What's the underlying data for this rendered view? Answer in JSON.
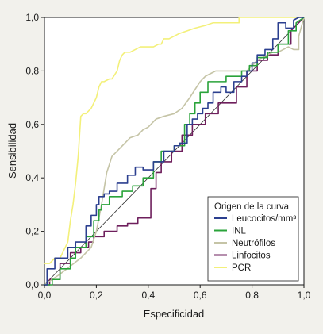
{
  "chart_data": {
    "type": "line",
    "title": "",
    "xlabel": "Especificidad",
    "ylabel": "Sensibilidad",
    "xlim": [
      0,
      1
    ],
    "ylim": [
      0,
      1
    ],
    "x_ticks": [
      "0,0",
      "0,2",
      "0,4",
      "0,6",
      "0,8",
      "1,0"
    ],
    "y_ticks": [
      "0,0",
      "0,2",
      "0,4",
      "0,6",
      "0,8",
      "1,0"
    ],
    "grid": false,
    "background_color": "#ffffff",
    "legend": {
      "title": "Origen de la curva",
      "placement": "bottom-right",
      "entries": [
        "Leucocitos/mm³",
        "INL",
        "Neutrófilos",
        "Linfocitos",
        "PCR"
      ]
    },
    "series": [
      {
        "name": "Leucocitos/mm³",
        "color": "#2b3f8f",
        "x": [
          0,
          0.01,
          0.01,
          0.04,
          0.04,
          0.09,
          0.09,
          0.12,
          0.12,
          0.16,
          0.16,
          0.18,
          0.18,
          0.2,
          0.2,
          0.21,
          0.21,
          0.23,
          0.23,
          0.25,
          0.25,
          0.28,
          0.28,
          0.32,
          0.32,
          0.35,
          0.35,
          0.38,
          0.38,
          0.42,
          0.42,
          0.46,
          0.46,
          0.5,
          0.5,
          0.52,
          0.52,
          0.55,
          0.55,
          0.57,
          0.57,
          0.59,
          0.59,
          0.61,
          0.61,
          0.63,
          0.63,
          0.65,
          0.65,
          0.68,
          0.68,
          0.7,
          0.7,
          0.73,
          0.73,
          0.76,
          0.76,
          0.78,
          0.78,
          0.8,
          0.8,
          0.82,
          0.82,
          0.85,
          0.85,
          0.88,
          0.88,
          0.9,
          0.9,
          0.93,
          0.93,
          0.96,
          0.96,
          0.98,
          1.0
        ],
        "y": [
          0,
          0,
          0.06,
          0.06,
          0.1,
          0.1,
          0.14,
          0.14,
          0.16,
          0.16,
          0.22,
          0.22,
          0.26,
          0.26,
          0.3,
          0.3,
          0.33,
          0.33,
          0.34,
          0.34,
          0.35,
          0.35,
          0.38,
          0.38,
          0.41,
          0.41,
          0.44,
          0.44,
          0.43,
          0.43,
          0.46,
          0.46,
          0.5,
          0.5,
          0.52,
          0.52,
          0.53,
          0.53,
          0.6,
          0.6,
          0.62,
          0.62,
          0.64,
          0.64,
          0.66,
          0.66,
          0.68,
          0.68,
          0.72,
          0.72,
          0.74,
          0.74,
          0.72,
          0.72,
          0.76,
          0.76,
          0.78,
          0.78,
          0.8,
          0.8,
          0.83,
          0.83,
          0.86,
          0.86,
          0.88,
          0.88,
          0.92,
          0.92,
          0.98,
          0.98,
          0.96,
          0.96,
          0.99,
          1.0,
          1.0
        ]
      },
      {
        "name": "INL",
        "color": "#2aa33a",
        "x": [
          0,
          0.03,
          0.03,
          0.06,
          0.06,
          0.1,
          0.1,
          0.12,
          0.12,
          0.16,
          0.16,
          0.19,
          0.19,
          0.21,
          0.21,
          0.22,
          0.22,
          0.25,
          0.25,
          0.3,
          0.3,
          0.34,
          0.34,
          0.38,
          0.38,
          0.42,
          0.42,
          0.45,
          0.45,
          0.5,
          0.5,
          0.54,
          0.54,
          0.56,
          0.56,
          0.58,
          0.58,
          0.6,
          0.6,
          0.63,
          0.63,
          0.66,
          0.66,
          0.7,
          0.7,
          0.73,
          0.73,
          0.76,
          0.76,
          0.79,
          0.79,
          0.82,
          0.82,
          0.86,
          0.86,
          0.9,
          0.9,
          0.94,
          0.94,
          0.97,
          0.97,
          1.0
        ],
        "y": [
          0,
          0,
          0.02,
          0.02,
          0.06,
          0.06,
          0.1,
          0.1,
          0.14,
          0.14,
          0.18,
          0.18,
          0.24,
          0.24,
          0.28,
          0.28,
          0.3,
          0.3,
          0.33,
          0.33,
          0.35,
          0.35,
          0.37,
          0.37,
          0.4,
          0.4,
          0.46,
          0.46,
          0.5,
          0.5,
          0.52,
          0.52,
          0.6,
          0.6,
          0.64,
          0.64,
          0.68,
          0.68,
          0.72,
          0.72,
          0.76,
          0.76,
          0.76,
          0.76,
          0.78,
          0.78,
          0.78,
          0.78,
          0.8,
          0.8,
          0.82,
          0.82,
          0.85,
          0.85,
          0.87,
          0.87,
          0.9,
          0.9,
          0.95,
          0.95,
          0.98,
          1.0
        ]
      },
      {
        "name": "Neutrófilos",
        "color": "#c5c4a6",
        "x": [
          0,
          0.03,
          0.06,
          0.1,
          0.14,
          0.18,
          0.2,
          0.22,
          0.24,
          0.26,
          0.28,
          0.3,
          0.33,
          0.36,
          0.38,
          0.4,
          0.43,
          0.46,
          0.5,
          0.53,
          0.56,
          0.58,
          0.6,
          0.62,
          0.64,
          0.66,
          0.7,
          0.74,
          0.78,
          0.8,
          0.82,
          0.86,
          0.88,
          0.9,
          0.92,
          0.94,
          0.96,
          0.98,
          0.98,
          1.0
        ],
        "y": [
          0,
          0.02,
          0.04,
          0.07,
          0.1,
          0.14,
          0.2,
          0.3,
          0.42,
          0.48,
          0.5,
          0.52,
          0.55,
          0.56,
          0.58,
          0.59,
          0.62,
          0.63,
          0.64,
          0.66,
          0.7,
          0.73,
          0.76,
          0.78,
          0.79,
          0.8,
          0.8,
          0.8,
          0.8,
          0.82,
          0.84,
          0.86,
          0.87,
          0.87,
          0.88,
          0.89,
          0.88,
          0.88,
          0.93,
          1.0
        ]
      },
      {
        "name": "Linfocitos",
        "color": "#6e1f5c",
        "x": [
          0,
          0.02,
          0.02,
          0.06,
          0.06,
          0.1,
          0.1,
          0.14,
          0.14,
          0.17,
          0.17,
          0.19,
          0.19,
          0.23,
          0.23,
          0.28,
          0.28,
          0.32,
          0.32,
          0.36,
          0.36,
          0.41,
          0.41,
          0.43,
          0.43,
          0.45,
          0.45,
          0.49,
          0.49,
          0.53,
          0.53,
          0.57,
          0.57,
          0.62,
          0.62,
          0.67,
          0.67,
          0.74,
          0.74,
          0.78,
          0.78,
          0.82,
          0.82,
          0.86,
          0.86,
          0.9,
          0.9,
          0.95,
          0.95,
          1.0
        ],
        "y": [
          0,
          0,
          0.02,
          0.02,
          0.08,
          0.08,
          0.12,
          0.12,
          0.14,
          0.14,
          0.16,
          0.16,
          0.18,
          0.18,
          0.2,
          0.2,
          0.22,
          0.22,
          0.23,
          0.23,
          0.25,
          0.25,
          0.36,
          0.36,
          0.42,
          0.42,
          0.46,
          0.46,
          0.5,
          0.5,
          0.56,
          0.56,
          0.6,
          0.6,
          0.64,
          0.64,
          0.68,
          0.68,
          0.74,
          0.74,
          0.8,
          0.8,
          0.84,
          0.84,
          0.86,
          0.86,
          0.9,
          0.9,
          0.95,
          1.0
        ]
      },
      {
        "name": "PCR",
        "color": "#f3f07a",
        "x": [
          0,
          0.02,
          0.04,
          0.06,
          0.07,
          0.08,
          0.09,
          0.1,
          0.11,
          0.12,
          0.13,
          0.14,
          0.15,
          0.16,
          0.18,
          0.2,
          0.21,
          0.22,
          0.23,
          0.25,
          0.26,
          0.28,
          0.29,
          0.3,
          0.31,
          0.33,
          0.35,
          0.37,
          0.39,
          0.42,
          0.44,
          0.45,
          0.46,
          0.48,
          0.5,
          0.52,
          0.55,
          0.58,
          0.62,
          0.65,
          0.7,
          0.75,
          0.75,
          0.8,
          0.85,
          0.9,
          0.95,
          1.0
        ],
        "y": [
          0.08,
          0.08,
          0.1,
          0.1,
          0.12,
          0.14,
          0.16,
          0.24,
          0.3,
          0.38,
          0.48,
          0.63,
          0.64,
          0.64,
          0.66,
          0.7,
          0.74,
          0.76,
          0.76,
          0.77,
          0.77,
          0.8,
          0.84,
          0.86,
          0.87,
          0.87,
          0.88,
          0.89,
          0.89,
          0.89,
          0.9,
          0.9,
          0.92,
          0.92,
          0.93,
          0.94,
          0.95,
          0.96,
          0.97,
          0.98,
          0.98,
          0.98,
          1.0,
          1.0,
          1.0,
          1.0,
          1.0,
          1.0
        ]
      }
    ]
  }
}
